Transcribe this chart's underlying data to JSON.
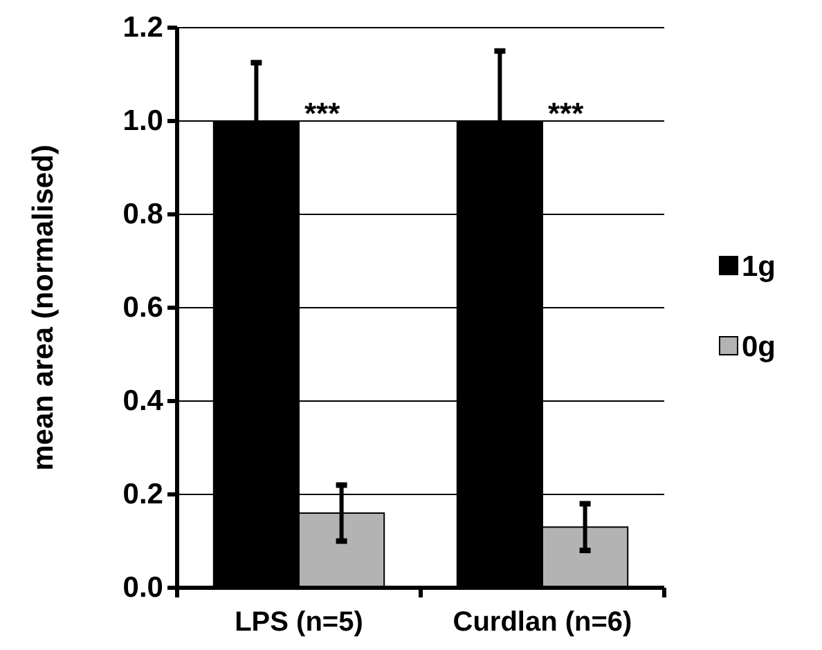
{
  "chart_data": {
    "type": "bar",
    "ylabel": "mean area (normalised)",
    "categories": [
      "LPS (n=5)",
      "Curdlan (n=6)"
    ],
    "series": [
      {
        "name": "1g",
        "color": "#000000",
        "values": [
          1.0,
          1.0
        ],
        "errors": [
          0.125,
          0.15
        ]
      },
      {
        "name": "0g",
        "color": "#b3b3b3",
        "values": [
          0.16,
          0.13
        ],
        "errors": [
          0.06,
          0.05
        ]
      }
    ],
    "ylim": [
      0,
      1.2
    ],
    "yticks": [
      {
        "value": 0,
        "label": "0.0"
      },
      {
        "value": 0.2,
        "label": "0.2"
      },
      {
        "value": 0.4,
        "label": "0.4"
      },
      {
        "value": 0.6,
        "label": "0.6"
      },
      {
        "value": 0.8,
        "label": "0.8"
      },
      {
        "value": 1.0,
        "label": "1.0"
      },
      {
        "value": 1.2,
        "label": "1.2"
      }
    ],
    "grid": "y",
    "legend": "right",
    "annotations": [
      {
        "text": "***",
        "x": "LPS (n=5)",
        "y": 1.0
      },
      {
        "text": "***",
        "x": "Curdlan (n=6)",
        "y": 1.0
      }
    ]
  }
}
